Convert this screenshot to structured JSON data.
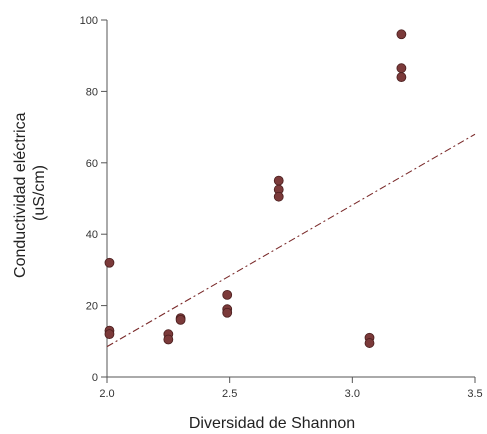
{
  "chart_data": {
    "type": "scatter",
    "xlabel": "Diversidad de Shannon",
    "ylabel_lines": [
      "Conductividad eléctrica",
      "(uS/cm)"
    ],
    "xlim": [
      2.0,
      3.5
    ],
    "ylim": [
      0,
      100
    ],
    "x_ticks": [
      2.0,
      2.5,
      3.0,
      3.5
    ],
    "x_tick_labels": [
      "2.0",
      "2.5",
      "3.0",
      "3.5"
    ],
    "y_ticks": [
      0,
      20,
      40,
      60,
      80,
      100
    ],
    "y_tick_labels": [
      "0",
      "20",
      "40",
      "60",
      "80",
      "100"
    ],
    "grid": false,
    "series": [
      {
        "points": [
          {
            "x": 2.01,
            "y": 32
          },
          {
            "x": 2.01,
            "y": 13
          },
          {
            "x": 2.01,
            "y": 12
          },
          {
            "x": 2.25,
            "y": 12
          },
          {
            "x": 2.25,
            "y": 10.5
          },
          {
            "x": 2.3,
            "y": 16.5
          },
          {
            "x": 2.3,
            "y": 16
          },
          {
            "x": 2.49,
            "y": 23
          },
          {
            "x": 2.49,
            "y": 19
          },
          {
            "x": 2.49,
            "y": 18
          },
          {
            "x": 2.7,
            "y": 55
          },
          {
            "x": 2.7,
            "y": 52.5
          },
          {
            "x": 2.7,
            "y": 50.5
          },
          {
            "x": 3.07,
            "y": 11
          },
          {
            "x": 3.07,
            "y": 9.5
          },
          {
            "x": 3.2,
            "y": 96
          },
          {
            "x": 3.2,
            "y": 86.5
          },
          {
            "x": 3.2,
            "y": 84
          }
        ]
      }
    ],
    "trendline": {
      "x": [
        2.0,
        3.5
      ],
      "y": [
        8.5,
        68
      ]
    },
    "colors": {
      "point": "#7b3a3a",
      "trendline": "#7a2a2a",
      "axis": "#555555"
    }
  }
}
